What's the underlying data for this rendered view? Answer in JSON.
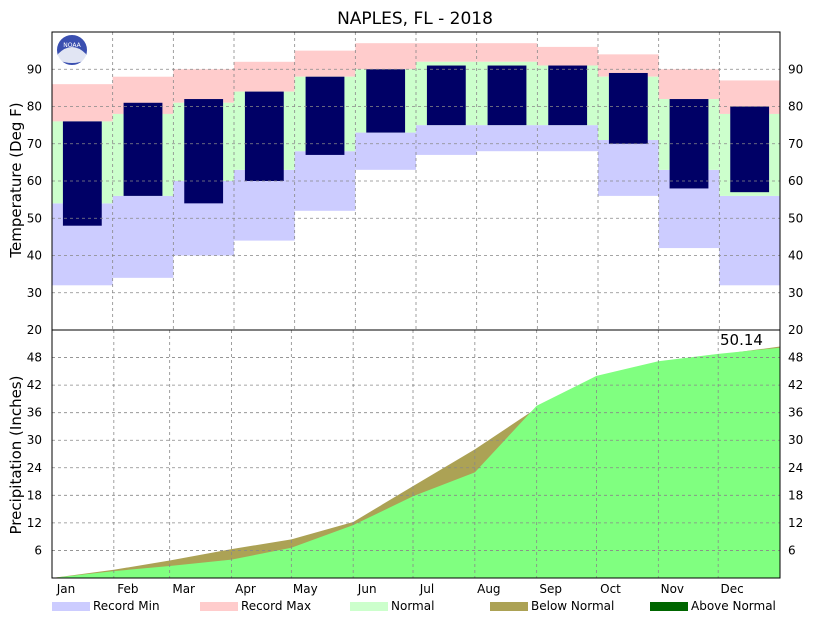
{
  "chart_data": [
    {
      "type": "bar",
      "title": "NAPLES, FL - 2018",
      "ylabel": "Temperature (Deg F)",
      "ylim": [
        20,
        100
      ],
      "yticks": [
        30,
        40,
        50,
        60,
        70,
        80,
        90
      ],
      "grid": true,
      "logo": {
        "text": "NOAA",
        "color": "#3a4fb0"
      },
      "months": [
        "Jan",
        "Feb",
        "Mar",
        "Apr",
        "May",
        "Jun",
        "Jul",
        "Aug",
        "Sep",
        "Oct",
        "Nov",
        "Dec"
      ],
      "colors": {
        "record_min": "#ccccff",
        "record_max": "#ffcccc",
        "normal": "#ccffcc",
        "actual": "#000066"
      },
      "monthly": {
        "record_min": [
          32,
          34,
          40,
          44,
          52,
          63,
          67,
          68,
          68,
          56,
          42,
          32
        ],
        "normal_min": [
          54,
          56,
          60,
          63,
          68,
          73,
          75,
          75,
          75,
          71,
          63,
          56
        ],
        "normal_max": [
          76,
          78,
          81,
          84,
          88,
          90,
          92,
          92,
          91,
          88,
          82,
          78
        ],
        "record_max": [
          86,
          88,
          90,
          92,
          95,
          97,
          97,
          97,
          96,
          94,
          90,
          87
        ],
        "actual_low": [
          48,
          56,
          54,
          60,
          67,
          73,
          75,
          75,
          75,
          70,
          58,
          57
        ],
        "actual_high": [
          76,
          81,
          82,
          84,
          88,
          90,
          91,
          91,
          91,
          89,
          82,
          80
        ]
      }
    },
    {
      "type": "area",
      "ylabel": "Precipitation (Inches)",
      "ylim": [
        0,
        54
      ],
      "yticks": [
        6,
        12,
        18,
        24,
        30,
        36,
        42,
        48
      ],
      "corner_tick": "20",
      "annotation": "50.14",
      "grid": true,
      "months": [
        "Jan",
        "Feb",
        "Mar",
        "Apr",
        "May",
        "Jun",
        "Jul",
        "Aug",
        "Sep",
        "Oct",
        "Nov",
        "Dec"
      ],
      "x_day": [
        0,
        31,
        59,
        90,
        120,
        151,
        181,
        212,
        243,
        273,
        304,
        334,
        365
      ],
      "actual_cumulative": [
        0,
        1.5,
        2.6,
        4.0,
        6.6,
        11.5,
        17.8,
        23.0,
        37.5,
        44.0,
        47.2,
        48.8,
        50.14
      ],
      "normal_cumulative": [
        0,
        1.8,
        3.8,
        6.3,
        8.4,
        12.2,
        20.0,
        28.0,
        37.0,
        43.6,
        46.6,
        48.6,
        50.4
      ],
      "colors": {
        "actual": "#80ff80",
        "below_normal": "#aca255",
        "above_normal": "#006600"
      }
    }
  ],
  "legend": [
    {
      "label": "Record Min",
      "color": "#ccccff"
    },
    {
      "label": "Record Max",
      "color": "#ffcccc"
    },
    {
      "label": "Normal",
      "color": "#ccffcc"
    },
    {
      "label": "Below Normal",
      "color": "#aca255"
    },
    {
      "label": "Above Normal",
      "color": "#006600"
    }
  ]
}
